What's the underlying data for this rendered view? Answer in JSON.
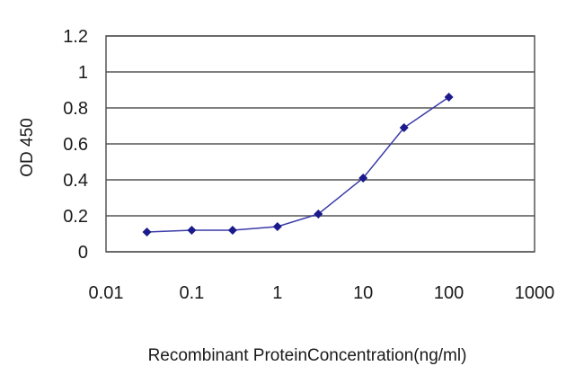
{
  "chart_data": {
    "type": "line",
    "title": "",
    "xlabel": "Recombinant ProteinConcentration(ng/ml)",
    "ylabel": "OD 450",
    "x_scale": "log",
    "xlim": [
      0.01,
      1000
    ],
    "ylim": [
      0,
      1.2
    ],
    "x_ticks": [
      "0.01",
      "0.1",
      "1",
      "10",
      "100",
      "1000"
    ],
    "y_ticks": [
      "0",
      "0.2",
      "0.4",
      "0.6",
      "0.8",
      "1",
      "1.2"
    ],
    "grid": "horizontal",
    "legend": "none",
    "series": [
      {
        "color": "#1a1a8c",
        "marker": "diamond",
        "points": [
          {
            "x": 0.03,
            "y": 0.11
          },
          {
            "x": 0.1,
            "y": 0.12
          },
          {
            "x": 0.3,
            "y": 0.12
          },
          {
            "x": 1,
            "y": 0.14
          },
          {
            "x": 3,
            "y": 0.21
          },
          {
            "x": 10,
            "y": 0.41
          },
          {
            "x": 30,
            "y": 0.69
          },
          {
            "x": 100,
            "y": 0.86
          }
        ]
      }
    ]
  }
}
